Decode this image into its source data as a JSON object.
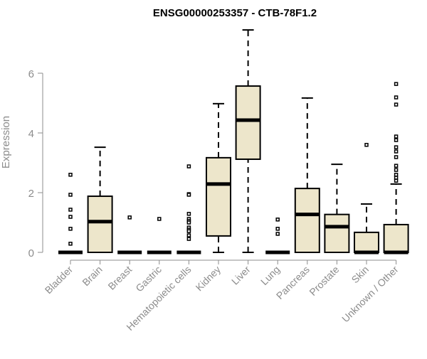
{
  "chart_data": {
    "type": "boxplot",
    "title": "ENSG00000253357 - CTB-78F1.2",
    "xlabel": "",
    "ylabel": "Expression",
    "ylim": [
      0,
      7.5
    ],
    "yticks": [
      0,
      2,
      4,
      6
    ],
    "box_fill": "#ede6cb",
    "axis_color": "#8c8c8c",
    "categories": [
      "Bladder",
      "Brain",
      "Breast",
      "Gastric",
      "Hematopoietic cells",
      "Kidney",
      "Liver",
      "Lung",
      "Pancreas",
      "Prostate",
      "Skin",
      "Unknown / Other"
    ],
    "boxes": [
      {
        "min": 0,
        "q1": 0,
        "median": 0,
        "q3": 0,
        "max": 0,
        "outliers": [
          2.6,
          1.93,
          1.43,
          1.19,
          0.79,
          0.29
        ]
      },
      {
        "min": 0,
        "q1": 0,
        "median": 1.03,
        "q3": 1.88,
        "max": 3.52,
        "outliers": []
      },
      {
        "min": 0,
        "q1": 0,
        "median": 0,
        "q3": 0,
        "max": 0,
        "outliers": [
          1.17
        ]
      },
      {
        "min": 0,
        "q1": 0,
        "median": 0,
        "q3": 0,
        "max": 0,
        "outliers": [
          1.12
        ]
      },
      {
        "min": 0,
        "q1": 0,
        "median": 0,
        "q3": 0,
        "max": 0,
        "outliers": [
          2.88,
          1.95,
          1.93,
          1.29,
          1.12,
          1.05,
          1.0,
          0.83,
          0.76,
          0.71,
          0.57,
          0.45
        ]
      },
      {
        "min": 0,
        "q1": 0.55,
        "median": 2.29,
        "q3": 3.17,
        "max": 4.98,
        "outliers": []
      },
      {
        "min": 0,
        "q1": 3.12,
        "median": 4.43,
        "q3": 5.57,
        "max": 7.45,
        "outliers": []
      },
      {
        "min": 0,
        "q1": 0,
        "median": 0,
        "q3": 0,
        "max": 0,
        "outliers": [
          1.1,
          0.79,
          0.62
        ]
      },
      {
        "min": 0,
        "q1": 0,
        "median": 1.27,
        "q3": 2.14,
        "max": 5.17,
        "outliers": []
      },
      {
        "min": 0,
        "q1": 0,
        "median": 0.86,
        "q3": 1.27,
        "max": 2.95,
        "outliers": []
      },
      {
        "min": 0,
        "q1": 0,
        "median": 0,
        "q3": 0.67,
        "max": 1.62,
        "outliers": [
          3.6
        ]
      },
      {
        "min": 0,
        "q1": 0,
        "median": 0,
        "q3": 0.93,
        "max": 2.29,
        "outliers": [
          5.64,
          5.19,
          4.95,
          3.88,
          3.76,
          3.52,
          3.38,
          3.19,
          2.9,
          2.76,
          2.6,
          2.5,
          2.4
        ]
      }
    ]
  }
}
